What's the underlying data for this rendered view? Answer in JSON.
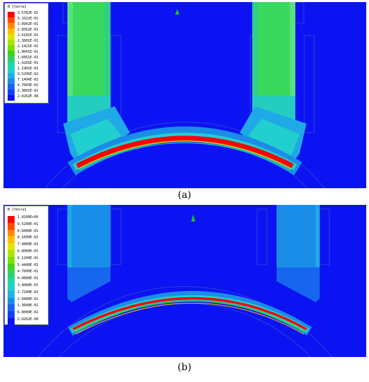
{
  "figure": {
    "panel_a": {
      "caption": "(a)",
      "legend_title": "B [tesla]",
      "legend_values": [
        "3.5702E-01",
        "3.3322E-01",
        "3.0942E-01",
        "2.8562E-01",
        "2.6181E-01",
        "2.3801E-01",
        "2.1421E-01",
        "1.9041E-01",
        "1.6661E-01",
        "1.4281E-01",
        "1.1901E-01",
        "9.5205E-02",
        "7.1404E-02",
        "4.7603E-02",
        "2.3801E-02",
        "2.0262E-08"
      ]
    },
    "panel_b": {
      "caption": "(b)",
      "legend_title": "B [tesla]",
      "legend_values": [
        "1.0200E+00",
        "9.5200E-01",
        "8.8400E-01",
        "8.1600E-01",
        "7.4800E-01",
        "6.8000E-01",
        "6.1200E-01",
        "5.4400E-01",
        "4.7600E-01",
        "4.0800E-01",
        "3.4000E-01",
        "2.7200E-01",
        "2.0400E-01",
        "1.3600E-01",
        "6.8000E-02",
        "2.0262E-08"
      ]
    },
    "colormap": [
      "#ff0000",
      "#ff4a00",
      "#ff8a00",
      "#ffbf00",
      "#e4e400",
      "#aee600",
      "#77e000",
      "#3fd41c",
      "#2fd26a",
      "#22d6a6",
      "#22cfcf",
      "#1fb3e4",
      "#1a8de8",
      "#1766ef",
      "#1340f2",
      "#0b13f2"
    ]
  }
}
